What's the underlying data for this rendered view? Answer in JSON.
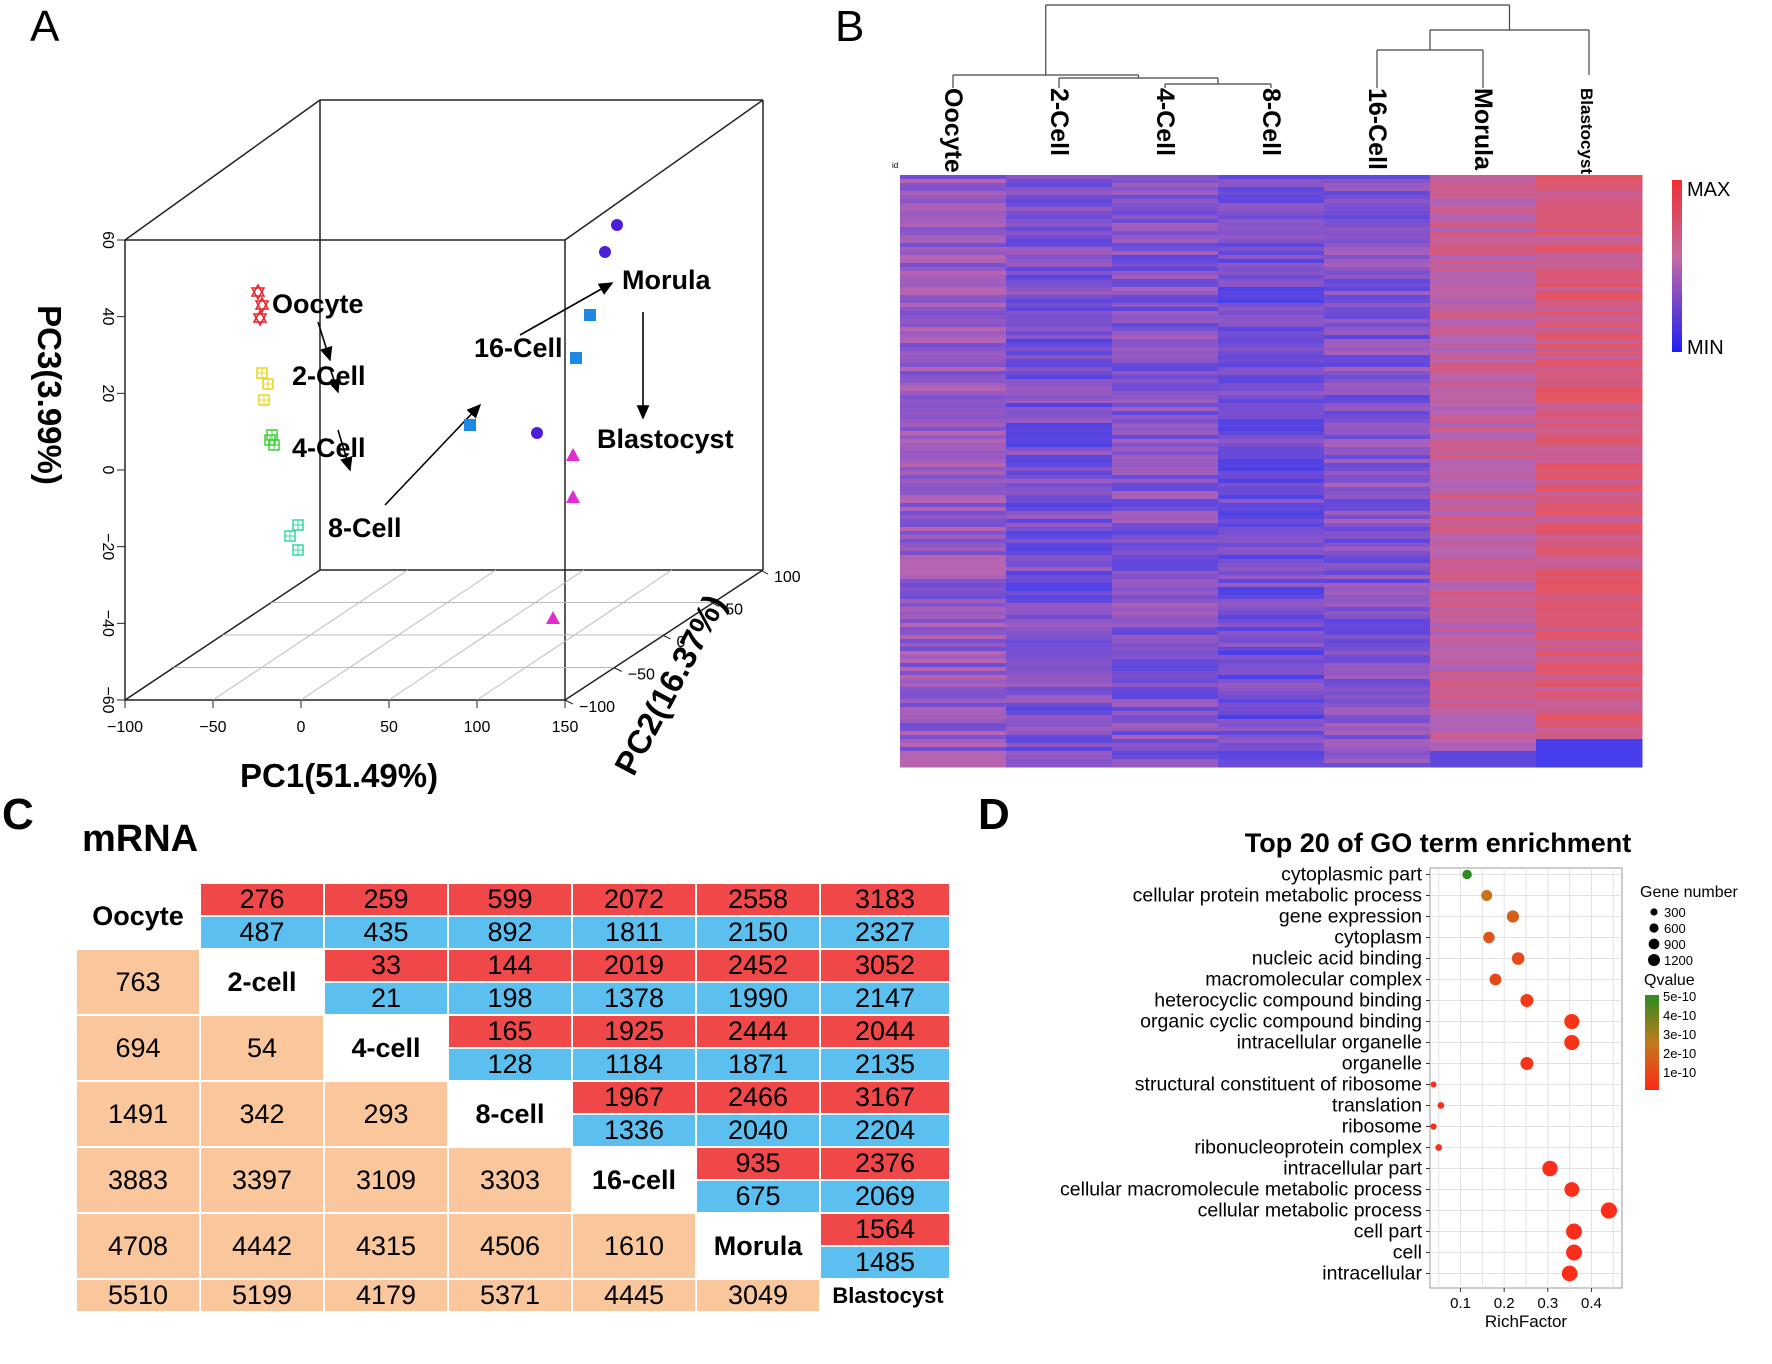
{
  "panels": {
    "a": {
      "letter": "A",
      "chart_data": {
        "type": "scatter",
        "projection": "3d",
        "xlabel": "PC1(51.49%)",
        "ylabel": "PC2(16.37%)",
        "zlabel": "PC3(3.99%)",
        "xticks": [
          "−100",
          "−50",
          "0",
          "50",
          "100",
          "150"
        ],
        "yticks": [
          "−100",
          "−50",
          "0",
          "50",
          "100"
        ],
        "zticks": [
          "−60",
          "−40",
          "−20",
          "0",
          "20",
          "40",
          "60"
        ],
        "xlim": [
          -100,
          150
        ],
        "ylim": [
          -100,
          100
        ],
        "zlim": [
          -60,
          60
        ],
        "labels": [
          "Oocyte",
          "2-Cell",
          "4-Cell",
          "8-Cell",
          "16-Cell",
          "Morula",
          "Blastocyst"
        ],
        "point_colors": {
          "Oocyte": "#e8222e",
          "2-Cell": "#e8d61c",
          "4-Cell": "#3fcf3a",
          "8-Cell": "#31d6a3",
          "16-Cell": "#1e88e5",
          "Morula": "#4b1fd9",
          "Blastocyst": "#e32bcf"
        }
      }
    },
    "b": {
      "letter": "B",
      "chart_data": {
        "type": "heatmap",
        "columns": [
          "Oocyte",
          "2-Cell",
          "4-Cell",
          "8-Cell",
          "16-Cell",
          "Morula",
          "Blastocyst"
        ],
        "corner_label": "id",
        "legend_max": "MAX",
        "legend_min": "MIN",
        "low_color": "#3a3af0",
        "high_color": "#f05050"
      }
    },
    "c": {
      "letter": "C",
      "title": "mRNA",
      "chart_data": {
        "type": "table",
        "stages": [
          "Oocyte",
          "2-cell",
          "4-cell",
          "8-cell",
          "16-cell",
          "Morula",
          "Blastocyst"
        ],
        "upper_red": [
          [
            "276",
            "259",
            "599",
            "2072",
            "2558",
            "3183"
          ],
          [
            "33",
            "144",
            "2019",
            "2452",
            "3052"
          ],
          [
            "165",
            "1925",
            "2444",
            "2044"
          ],
          [
            "1967",
            "2466",
            "3167"
          ],
          [
            "935",
            "2376"
          ],
          [
            "1564"
          ]
        ],
        "upper_blue": [
          [
            "487",
            "435",
            "892",
            "1811",
            "2150",
            "2327"
          ],
          [
            "21",
            "198",
            "1378",
            "1990",
            "2147"
          ],
          [
            "128",
            "1184",
            "1871",
            "2135"
          ],
          [
            "1336",
            "2040",
            "2204"
          ],
          [
            "675",
            "2069"
          ],
          [
            "1485"
          ]
        ],
        "lower": [
          [
            "763"
          ],
          [
            "694",
            "54"
          ],
          [
            "1491",
            "342",
            "293"
          ],
          [
            "3883",
            "3397",
            "3109",
            "3303"
          ],
          [
            "4708",
            "4442",
            "4315",
            "4506",
            "1610"
          ],
          [
            "5510",
            "5199",
            "4179",
            "5371",
            "4445",
            "3049"
          ]
        ]
      }
    },
    "d": {
      "letter": "D",
      "chart_data": {
        "type": "scatter",
        "title": "Top 20 of GO term enrichment",
        "xlabel": "RichFactor",
        "xticks": [
          "0.1",
          "0.2",
          "0.3",
          "0.4"
        ],
        "xlim": [
          0.03,
          0.47
        ],
        "terms": [
          {
            "term": "cytoplasmic part",
            "rich": 0.115,
            "genes": 300,
            "q": 5e-10
          },
          {
            "term": "cellular protein metabolic process",
            "rich": 0.16,
            "genes": 450,
            "q": 2.2e-10
          },
          {
            "term": "gene expression",
            "rich": 0.22,
            "genes": 600,
            "q": 1.7e-10
          },
          {
            "term": "cytoplasm",
            "rich": 0.165,
            "genes": 500,
            "q": 1.3e-10
          },
          {
            "term": "nucleic acid binding",
            "rich": 0.232,
            "genes": 650,
            "q": 1e-10
          },
          {
            "term": "macromolecular complex",
            "rich": 0.18,
            "genes": 550,
            "q": 1e-10
          },
          {
            "term": "heterocyclic compound binding",
            "rich": 0.252,
            "genes": 700,
            "q": 5e-11
          },
          {
            "term": "organic cyclic compound binding",
            "rich": 0.355,
            "genes": 1050,
            "q": 3e-11
          },
          {
            "term": "intracellular organelle",
            "rich": 0.355,
            "genes": 1050,
            "q": 3e-11
          },
          {
            "term": "organelle",
            "rich": 0.252,
            "genes": 700,
            "q": 3e-11
          },
          {
            "term": "structural constituent of ribosome",
            "rich": 0.038,
            "genes": 60,
            "q": 1e-11
          },
          {
            "term": "translation",
            "rich": 0.055,
            "genes": 90,
            "q": 1e-11
          },
          {
            "term": "ribosome",
            "rich": 0.038,
            "genes": 70,
            "q": 1e-11
          },
          {
            "term": "ribonucleoprotein complex",
            "rich": 0.05,
            "genes": 90,
            "q": 1e-11
          },
          {
            "term": "intracellular part",
            "rich": 0.305,
            "genes": 1100,
            "q": 1e-11
          },
          {
            "term": "cellular macromolecule metabolic process",
            "rich": 0.355,
            "genes": 1000,
            "q": 1e-11
          },
          {
            "term": "cellular metabolic process",
            "rich": 0.44,
            "genes": 1250,
            "q": 1e-11
          },
          {
            "term": "cell part",
            "rich": 0.36,
            "genes": 1200,
            "q": 1e-11
          },
          {
            "term": "cell",
            "rich": 0.36,
            "genes": 1200,
            "q": 1e-11
          },
          {
            "term": "intracellular",
            "rich": 0.35,
            "genes": 1150,
            "q": 1e-11
          }
        ],
        "size_legend_title": "Gene number",
        "size_legend": [
          "300",
          "600",
          "900",
          "1200"
        ],
        "color_legend_title": "Qvalue",
        "color_legend": [
          "5e-10",
          "4e-10",
          "3e-10",
          "2e-10",
          "1e-10"
        ],
        "color_low_q": "#ff2a1a",
        "color_high_q": "#2e8b22"
      }
    }
  }
}
